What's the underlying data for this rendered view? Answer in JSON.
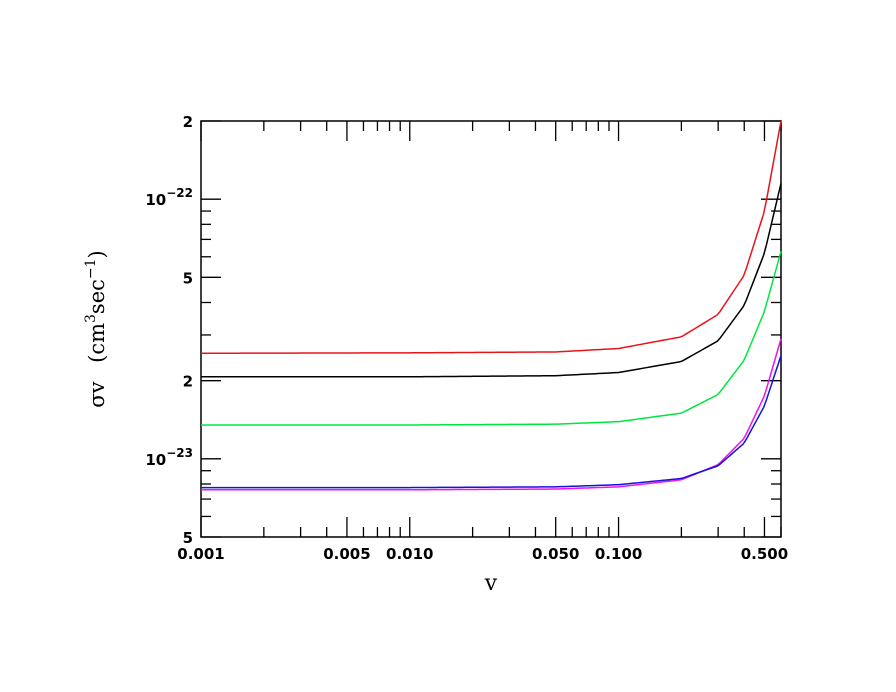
{
  "chart_data": {
    "type": "line",
    "title": "",
    "xlabel": "v",
    "ylabel": {
      "symbol": "σv",
      "units_open": "(cm",
      "units_exp": "3",
      "units_mid": "sec",
      "units_exp2": "−1",
      "units_close": ")"
    },
    "x_scale": "log",
    "y_scale": "log",
    "xlim": [
      0.001,
      0.6
    ],
    "ylim": [
      5e-24,
      2e-22
    ],
    "x_ticks": [
      {
        "value": 0.001,
        "label": "0.001"
      },
      {
        "value": 0.005,
        "label": "0.005"
      },
      {
        "value": 0.01,
        "label": "0.010"
      },
      {
        "value": 0.05,
        "label": "0.050"
      },
      {
        "value": 0.1,
        "label": "0.100"
      },
      {
        "value": 0.5,
        "label": "0.500"
      }
    ],
    "y_ticks": [
      {
        "value": 5e-24,
        "base": "5",
        "exp": ""
      },
      {
        "value": 1e-23,
        "base": "10",
        "exp": "−23"
      },
      {
        "value": 2e-23,
        "base": "2",
        "exp": ""
      },
      {
        "value": 5e-23,
        "base": "5",
        "exp": ""
      },
      {
        "value": 1e-22,
        "base": "10",
        "exp": "−22"
      },
      {
        "value": 2e-22,
        "base": "2",
        "exp": ""
      }
    ],
    "series": [
      {
        "color": "#e8141c",
        "x": [
          0.001,
          0.01,
          0.05,
          0.1,
          0.2,
          0.3,
          0.4,
          0.5,
          0.6
        ],
        "values": [
          2.55e-23,
          2.56e-23,
          2.58e-23,
          2.66e-23,
          2.95e-23,
          3.6e-23,
          5.1e-23,
          9e-23,
          2e-22
        ]
      },
      {
        "color": "#000000",
        "x": [
          0.001,
          0.01,
          0.05,
          0.1,
          0.2,
          0.3,
          0.4,
          0.5,
          0.6
        ],
        "values": [
          2.07e-23,
          2.07e-23,
          2.09e-23,
          2.15e-23,
          2.37e-23,
          2.85e-23,
          3.9e-23,
          6.2e-23,
          1.15e-22
        ]
      },
      {
        "color": "#00e640",
        "x": [
          0.001,
          0.01,
          0.05,
          0.1,
          0.2,
          0.3,
          0.4,
          0.5,
          0.6
        ],
        "values": [
          1.35e-23,
          1.35e-23,
          1.36e-23,
          1.39e-23,
          1.5e-23,
          1.77e-23,
          2.4e-23,
          3.7e-23,
          6.3e-23
        ]
      },
      {
        "color": "#ee14ee",
        "x": [
          0.001,
          0.01,
          0.05,
          0.1,
          0.2,
          0.3,
          0.4,
          0.5,
          0.6
        ],
        "values": [
          7.6e-24,
          7.6e-24,
          7.65e-24,
          7.8e-24,
          8.3e-24,
          9.5e-24,
          1.2e-23,
          1.75e-23,
          2.9e-23
        ]
      },
      {
        "color": "#1414d8",
        "x": [
          0.001,
          0.01,
          0.05,
          0.1,
          0.2,
          0.3,
          0.4,
          0.5,
          0.6
        ],
        "values": [
          7.75e-24,
          7.75e-24,
          7.8e-24,
          7.95e-24,
          8.4e-24,
          9.4e-24,
          1.15e-23,
          1.6e-23,
          2.5e-23
        ]
      }
    ]
  }
}
